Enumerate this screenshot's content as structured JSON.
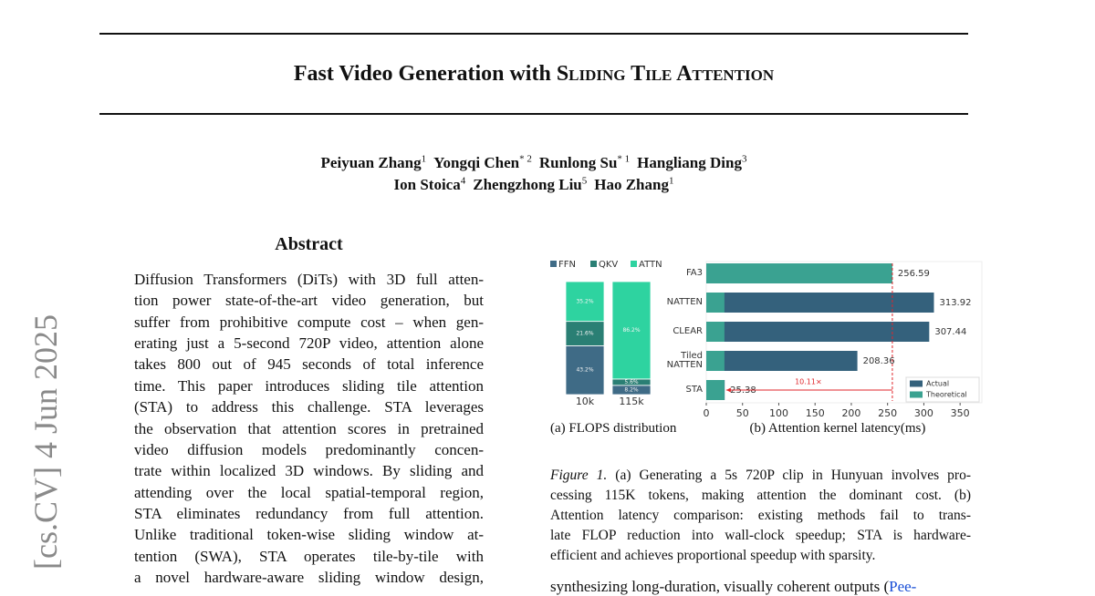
{
  "header": {
    "title": "Fast Video Generation with",
    "title_smallcaps": "Sliding Tile Attention"
  },
  "authors": [
    [
      {
        "name": "Peiyuan Zhang",
        "affiliation": "1"
      },
      {
        "name": "Yongqi Chen",
        "affiliation": "* 2"
      },
      {
        "name": "Runlong Su",
        "affiliation": "* 1"
      },
      {
        "name": "Hangliang Ding",
        "affiliation": "3"
      }
    ],
    [
      {
        "name": "Ion Stoica",
        "affiliation": "4"
      },
      {
        "name": "Zhengzhong Liu",
        "affiliation": "5"
      },
      {
        "name": "Hao Zhang",
        "affiliation": "1"
      }
    ]
  ],
  "side_stamp": "[cs.CV]  4 Jun 2025",
  "abstract": {
    "heading": "Abstract",
    "lines": [
      "Diffusion Transformers (DiTs) with 3D full atten-",
      "tion power state-of-the-art video generation, but",
      "suffer from prohibitive compute cost – when gen-",
      "erating just a 5-second 720P video, attention alone",
      "takes 800 out of 945 seconds of total inference",
      "time. This paper introduces sliding tile attention",
      "(STA) to address this challenge. STA leverages",
      "the observation that attention scores in pretrained",
      "video diffusion models predominantly concen-",
      "trate within localized 3D windows. By sliding and",
      "attending over the local spatial-temporal region,",
      "STA eliminates redundancy from full attention.",
      "Unlike traditional token-wise sliding window at-",
      "tention (SWA), STA operates tile-by-tile with",
      "a novel hardware-aware sliding window design,"
    ]
  },
  "chart_data": [
    {
      "type": "stacked_bar",
      "caption": "(a) FLOPS distribution",
      "categories": [
        "10k",
        "115k"
      ],
      "ylim": [
        0,
        100
      ],
      "legend": "top-left",
      "series": [
        {
          "name": "FFN",
          "color": "#3f6b86",
          "values": [
            43.2,
            8.2
          ],
          "value_labels": [
            "43.2%",
            "8.2%"
          ]
        },
        {
          "name": "QKV",
          "color": "#2a7f74",
          "values": [
            21.6,
            5.6
          ],
          "value_labels": [
            "21.6%",
            "5.6%"
          ]
        },
        {
          "name": "ATTN",
          "color": "#2ed3a0",
          "values": [
            35.2,
            86.2
          ],
          "value_labels": [
            "35.2%",
            "86.2%"
          ]
        }
      ]
    },
    {
      "type": "hbar",
      "caption": "(b) Attention kernel latency(ms)",
      "categories": [
        "FA3",
        "NATTEN",
        "CLEAR",
        "Tiled NATTEN",
        "STA"
      ],
      "xlim": [
        0,
        380
      ],
      "xticks": [
        0,
        50,
        100,
        150,
        200,
        250,
        300,
        350
      ],
      "legend": "bottom-right",
      "annotation": "10.11×",
      "annotation_color": "#e0262b",
      "series": [
        {
          "name": "Actual",
          "color": "#34617c",
          "values": [
            null,
            313.92,
            307.44,
            208.36,
            25.38
          ]
        },
        {
          "name": "Theoretical",
          "color": "#3aa291",
          "values": [
            256.59,
            25,
            25,
            25,
            25
          ]
        }
      ]
    }
  ],
  "figure_caption": {
    "label": "Figure 1.",
    "lines": [
      "(a) Generating a 5s 720P clip in Hunyuan involves pro-",
      "cessing 115K tokens, making attention the dominant cost. (b)",
      "Attention latency comparison: existing methods fail to trans-",
      "late FLOP reduction into wall-clock speedup; STA is hardware-",
      "efficient and achieves proportional speedup with sparsity."
    ]
  },
  "body": {
    "text": "synthesizing long-duration, visually coherent outputs (",
    "link": "Pee-"
  }
}
